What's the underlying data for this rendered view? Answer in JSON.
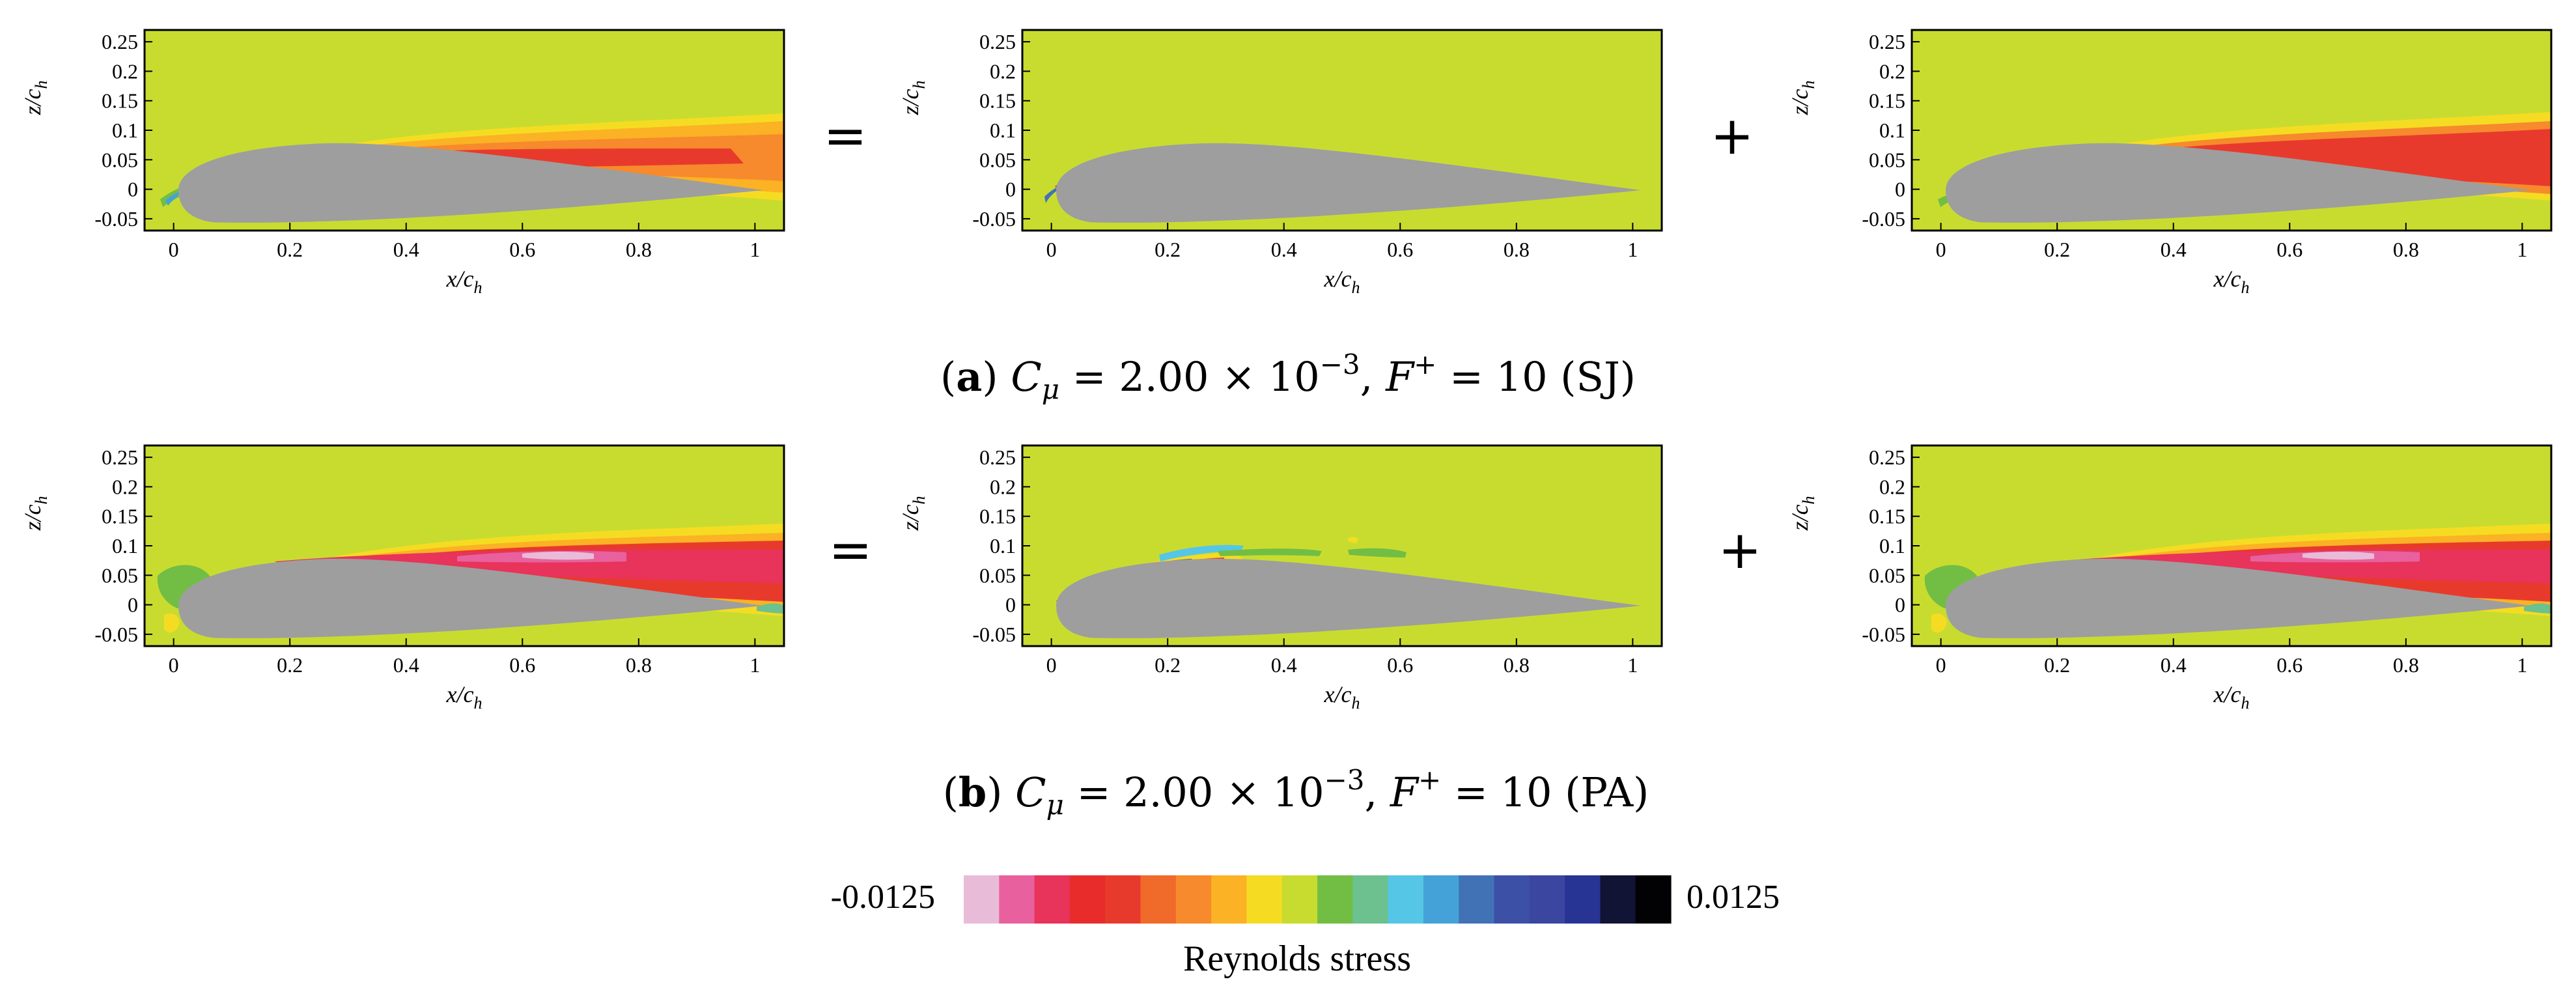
{
  "chart_data": {
    "type": "heatmap",
    "panels": [
      {
        "id": "a-total",
        "row": "a",
        "xlabel": "x/c",
        "xlabel_sub": "h",
        "ylabel": "z/c",
        "ylabel_sub": "h",
        "xlim": [
          -0.05,
          1.05
        ],
        "ylim": [
          -0.07,
          0.27
        ],
        "xticks": [
          "0",
          "0.2",
          "0.4",
          "0.6",
          "0.8",
          "1"
        ],
        "yticks": [
          "0.25",
          "0.2",
          "0.15",
          "0.1",
          "0.05",
          "0",
          "-0.05"
        ]
      },
      {
        "id": "a-coherent",
        "row": "a",
        "xlabel": "x/c",
        "xlabel_sub": "h",
        "ylabel": "z/c",
        "ylabel_sub": "h",
        "xlim": [
          -0.05,
          1.05
        ],
        "ylim": [
          -0.07,
          0.27
        ],
        "xticks": [
          "0",
          "0.2",
          "0.4",
          "0.6",
          "0.8",
          "1"
        ],
        "yticks": [
          "0.25",
          "0.2",
          "0.15",
          "0.1",
          "0.05",
          "0",
          "-0.05"
        ]
      },
      {
        "id": "a-turbulent",
        "row": "a",
        "xlabel": "x/c",
        "xlabel_sub": "h",
        "ylabel": "z/c",
        "ylabel_sub": "h",
        "xlim": [
          -0.05,
          1.05
        ],
        "ylim": [
          -0.07,
          0.27
        ],
        "xticks": [
          "0",
          "0.2",
          "0.4",
          "0.6",
          "0.8",
          "1"
        ],
        "yticks": [
          "0.25",
          "0.2",
          "0.15",
          "0.1",
          "0.05",
          "0",
          "-0.05"
        ]
      },
      {
        "id": "b-total",
        "row": "b",
        "xlabel": "x/c",
        "xlabel_sub": "h",
        "ylabel": "z/c",
        "ylabel_sub": "h",
        "xlim": [
          -0.05,
          1.05
        ],
        "ylim": [
          -0.07,
          0.27
        ],
        "xticks": [
          "0",
          "0.2",
          "0.4",
          "0.6",
          "0.8",
          "1"
        ],
        "yticks": [
          "0.25",
          "0.2",
          "0.15",
          "0.1",
          "0.05",
          "0",
          "-0.05"
        ]
      },
      {
        "id": "b-coherent",
        "row": "b",
        "xlabel": "x/c",
        "xlabel_sub": "h",
        "ylabel": "z/c",
        "ylabel_sub": "h",
        "xlim": [
          -0.05,
          1.05
        ],
        "ylim": [
          -0.07,
          0.27
        ],
        "xticks": [
          "0",
          "0.2",
          "0.4",
          "0.6",
          "0.8",
          "1"
        ],
        "yticks": [
          "0.25",
          "0.2",
          "0.15",
          "0.1",
          "0.05",
          "0",
          "-0.05"
        ]
      },
      {
        "id": "b-turbulent",
        "row": "b",
        "xlabel": "x/c",
        "xlabel_sub": "h",
        "ylabel": "z/c",
        "ylabel_sub": "h",
        "xlim": [
          -0.05,
          1.05
        ],
        "ylim": [
          -0.07,
          0.27
        ],
        "xticks": [
          "0",
          "0.2",
          "0.4",
          "0.6",
          "0.8",
          "1"
        ],
        "yticks": [
          "0.25",
          "0.2",
          "0.15",
          "0.1",
          "0.05",
          "0",
          "-0.05"
        ]
      }
    ],
    "operators": {
      "equals": "=",
      "plus": "+"
    },
    "captions": [
      {
        "letter": "a",
        "cmu_exp": "−3",
        "value": " = 2.00 × 10",
        "f_text": " = 10 (SJ)"
      },
      {
        "letter": "b",
        "cmu_exp": "−3",
        "value": " = 2.00 × 10",
        "f_text": " = 10 (PA)"
      }
    ],
    "colorbar": {
      "title": "Reynolds stress",
      "min_label": "-0.0125",
      "max_label": "0.0125",
      "range": [
        -0.0125,
        0.0125
      ],
      "colors": [
        "#e8bcd8",
        "#e8619e",
        "#e8335a",
        "#e82c2c",
        "#e83a2c",
        "#f06a2a",
        "#f68a2c",
        "#fbb224",
        "#f5dc22",
        "#c8dc30",
        "#72be44",
        "#6cc18e",
        "#55c6e6",
        "#45a2d8",
        "#4272b6",
        "#3c50a6",
        "#3a46a0",
        "#283494",
        "#121436",
        "#020204"
      ]
    },
    "field_colors": {
      "background": "#c8dc30",
      "airfoil": "#9e9e9e"
    }
  }
}
